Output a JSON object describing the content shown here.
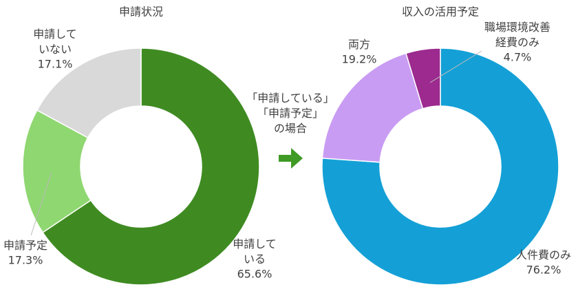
{
  "chart_data": [
    {
      "type": "pie",
      "title": "申請状況",
      "donut": true,
      "categories": [
        "申請して\nいる",
        "申請予定",
        "申請して\nいない"
      ],
      "values": [
        65.6,
        17.3,
        17.1
      ],
      "value_labels": [
        "65.6%",
        "17.3%",
        "17.1%"
      ],
      "colors": [
        "#3f8b22",
        "#8fd771",
        "#d9d9d9"
      ],
      "label_colors": [
        "#3f8b22",
        "#3f8b22",
        "#404040"
      ]
    },
    {
      "type": "pie",
      "title": "収入の活用予定",
      "donut": true,
      "categories": [
        "人件費のみ",
        "両方",
        "職場環境改善\n経費のみ"
      ],
      "values": [
        76.2,
        19.2,
        4.7
      ],
      "value_labels": [
        "76.2%",
        "19.2%",
        "4.7%"
      ],
      "colors": [
        "#14a0d6",
        "#c99cf3",
        "#9c2a8f"
      ],
      "label_colors": [
        "#14a0d6",
        "#b98ae6",
        "#9c2a8f"
      ]
    }
  ],
  "note": [
    "「申請している」",
    "「申請予定」",
    "の場合"
  ]
}
